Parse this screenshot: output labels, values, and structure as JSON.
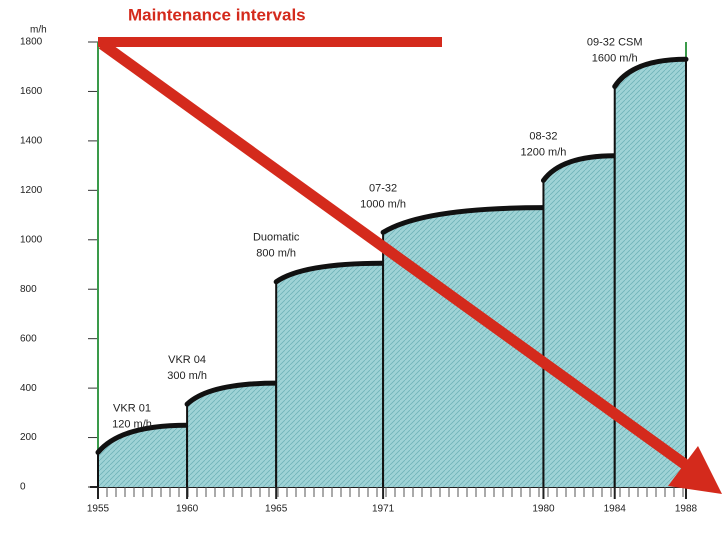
{
  "chart_data": {
    "type": "step-area",
    "title": "Maintenance intervals",
    "y_label": "m/h",
    "xlim": [
      1955,
      1988
    ],
    "xticks": [
      1955,
      1960,
      1965,
      1971,
      1980,
      1984,
      1988
    ],
    "ylim": [
      0,
      1800
    ],
    "yticks": [
      0,
      200,
      400,
      600,
      800,
      1000,
      1200,
      1400,
      1600,
      1800
    ],
    "color": "#9fd3d6",
    "segments": [
      {
        "name": "VKR 01",
        "rate": "120 m/h",
        "x": [
          1955,
          1960
        ],
        "values": [
          140,
          250
        ]
      },
      {
        "name": "VKR 04",
        "rate": "300 m/h",
        "x": [
          1960,
          1965
        ],
        "values": [
          335,
          420
        ]
      },
      {
        "name": "Duomatic",
        "rate": "800 m/h",
        "x": [
          1965,
          1971
        ],
        "values": [
          830,
          905
        ]
      },
      {
        "name": "07-32",
        "rate": "1000 m/h",
        "x": [
          1971,
          1980
        ],
        "values": [
          1030,
          1130
        ]
      },
      {
        "name": "08-32",
        "rate": "1200 m/h",
        "x": [
          1980,
          1984
        ],
        "values": [
          1240,
          1340
        ]
      },
      {
        "name": "09-32 CSM",
        "rate": "1600 m/h",
        "x": [
          1984,
          1988
        ],
        "values": [
          1620,
          1730
        ]
      }
    ]
  }
}
